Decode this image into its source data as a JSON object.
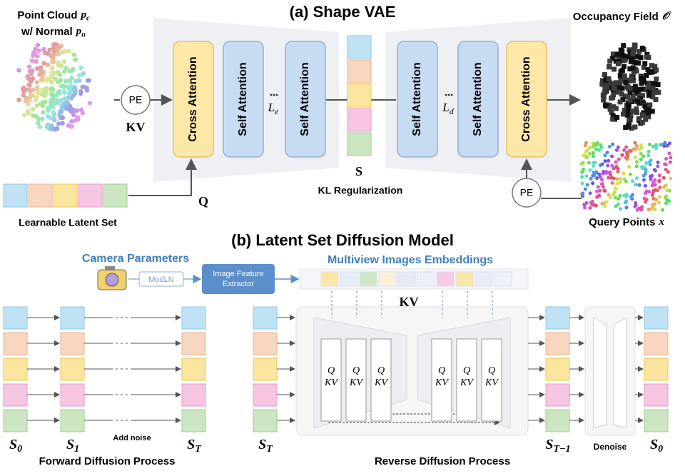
{
  "vae": {
    "title": "(a) Shape VAE",
    "point_cloud": {
      "label": "Point Cloud",
      "symbol": "p",
      "sub": "c"
    },
    "normal": {
      "label": "w/ Normal",
      "symbol": "p",
      "sub": "n"
    },
    "pe_input": "PE",
    "kv": "KV",
    "encoder": [
      "Cross Attention",
      "Self Attention",
      "Self Attention"
    ],
    "encoder_depth": {
      "symbol": "L",
      "sub": "e"
    },
    "latent": "S",
    "kl": "KL Regularization",
    "decoder": [
      "Self Attention",
      "Self Attention",
      "Cross Attention"
    ],
    "decoder_depth": {
      "symbol": "L",
      "sub": "d"
    },
    "occupancy": {
      "label": "Occupancy Field",
      "symbol": "𝒪"
    },
    "pe_query": "PE",
    "query": {
      "label": "Query Points",
      "symbol": "x"
    },
    "q": "Q",
    "latent_set": "Learnable Latent Set"
  },
  "diffusion": {
    "title": "(b) Latent Set Diffusion Model",
    "camera": "Camera Parameters",
    "modln": "ModLN",
    "extractor": "Image Feature Extractor",
    "embeddings": "Multiview Images Embeddings",
    "kv": "KV",
    "forward": {
      "states": [
        {
          "symbol": "S",
          "sub": "0"
        },
        {
          "symbol": "S",
          "sub": "1"
        },
        {
          "symbol": "S",
          "sub": "T"
        }
      ],
      "note": "Add noise",
      "label": "Forward Diffusion Process"
    },
    "reverse": {
      "input": {
        "symbol": "S",
        "sub": "T"
      },
      "blocks": [
        {
          "q": "Q",
          "kv": "KV"
        },
        {
          "q": "Q",
          "kv": "KV"
        },
        {
          "q": "Q",
          "kv": "KV"
        },
        {
          "q": "Q",
          "kv": "KV"
        },
        {
          "q": "Q",
          "kv": "KV"
        },
        {
          "q": "Q",
          "kv": "KV"
        }
      ],
      "output": {
        "symbol": "S",
        "sub": "T−1"
      },
      "denoise": "Denoise",
      "final": {
        "symbol": "S",
        "sub": "0"
      },
      "label": "Reverse Diffusion Process"
    }
  }
}
